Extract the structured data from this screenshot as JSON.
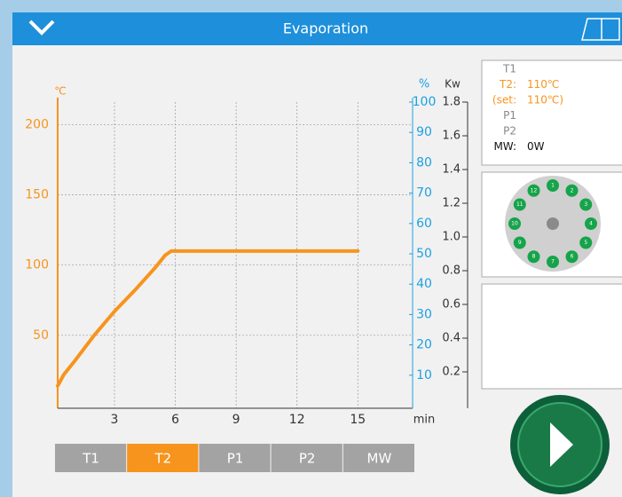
{
  "header": {
    "title": "Evaporation"
  },
  "chart_data": {
    "type": "line",
    "y_label": "℃",
    "y2_label": "%",
    "y3_label": "Kw",
    "x_label": "min",
    "x": [
      0.2,
      0.5,
      1,
      2,
      3,
      4,
      5,
      5.5,
      5.8,
      15
    ],
    "values": [
      14,
      22,
      31,
      50,
      67,
      82,
      98,
      107,
      110,
      110
    ],
    "color": "#f7941d",
    "xlim": [
      0.2,
      17.7
    ],
    "xticks": [
      3,
      6,
      9,
      12,
      15
    ],
    "ylim": [
      0,
      216
    ],
    "yticks": [
      50,
      100,
      150,
      200
    ],
    "y2lim": [
      0,
      100
    ],
    "y2ticks": [
      10,
      20,
      30,
      40,
      50,
      60,
      70,
      80,
      90,
      100
    ],
    "y3lim": [
      0,
      1.8
    ],
    "y3ticks": [
      0.2,
      0.4,
      0.6,
      0.8,
      {
        "value": 1,
        "label": "1.0"
      },
      1.2,
      1.4,
      1.6,
      1.8
    ],
    "grid": true
  },
  "tabs": [
    "T1",
    "T2",
    "P1",
    "P2",
    "MW"
  ],
  "status": [
    {
      "label": "T1"
    },
    {
      "label": "T2:",
      "value": "110℃"
    },
    {
      "label": "(set:",
      "value": "110℃)"
    },
    {
      "label": "P1"
    },
    {
      "label": "P2"
    },
    {
      "label": "MW:",
      "value": "0W"
    }
  ],
  "carousel": [
    "1",
    "2",
    "3",
    "4",
    "5",
    "6",
    "7",
    "8",
    "9",
    "10",
    "11",
    "12"
  ]
}
